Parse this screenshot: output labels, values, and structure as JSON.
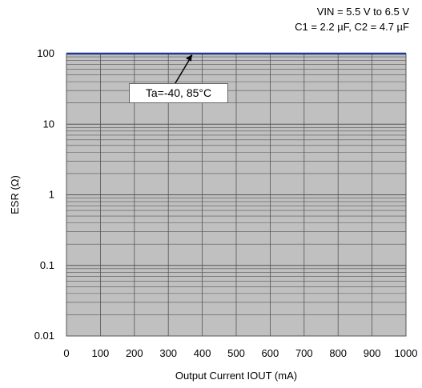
{
  "conditions": [
    "VIN = 5.5 V to 6.5 V",
    "C1 = 2.2 µF, C2 = 4.7 µF"
  ],
  "chart_data": {
    "type": "line",
    "xlabel": "Output Current IOUT (mA)",
    "ylabel": "ESR (Ω)",
    "xlim": [
      0,
      1000
    ],
    "ylim": [
      0.01,
      100
    ],
    "y_scale": "log",
    "x_ticks": [
      "0",
      "100",
      "200",
      "300",
      "400",
      "500",
      "600",
      "700",
      "800",
      "900",
      "1000"
    ],
    "y_ticks": [
      "0.01",
      "0.1",
      "1",
      "10",
      "100"
    ],
    "y_tick_values": [
      0.01,
      0.1,
      1,
      10,
      100
    ],
    "grid": true,
    "stable_region_color": "#c0c0c0",
    "series": [
      {
        "name": "Ta=-40, 85°C",
        "x": [
          0,
          1000
        ],
        "y": [
          100,
          100
        ],
        "color": "#1f3a93"
      }
    ],
    "annotations": [
      {
        "text": "Ta=-40, 85°C",
        "arrow_to": {
          "x": 370,
          "y": 100
        }
      }
    ]
  }
}
